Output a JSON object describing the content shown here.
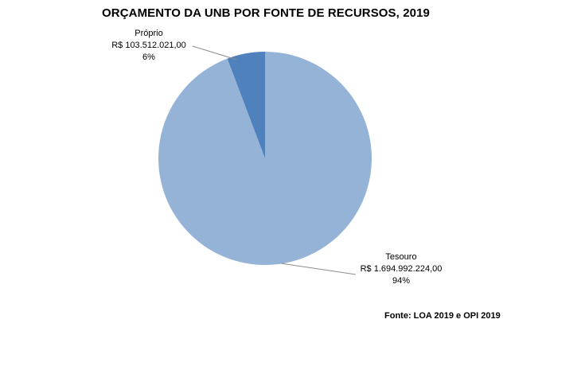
{
  "chart_data": {
    "type": "pie",
    "title": "ORÇAMENTO DA UNB POR FONTE DE RECURSOS, 2019",
    "slices": [
      {
        "name": "Próprio",
        "value": 103512021.0,
        "value_label": "R$ 103.512.021,00",
        "percent_label": "6%",
        "color": "#4f81bd"
      },
      {
        "name": "Tesouro",
        "value": 1694992224.0,
        "value_label": "R$ 1.694.992.224,00",
        "percent_label": "94%",
        "color": "#95b3d7"
      }
    ],
    "start_angle": "12 o'clock",
    "direction": "counterclockwise for first slice",
    "source": "Fonte: LOA 2019 e OPI 2019"
  }
}
